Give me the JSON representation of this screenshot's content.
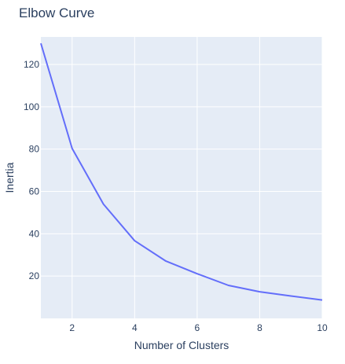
{
  "chart_data": {
    "type": "line",
    "title": "Elbow Curve",
    "xlabel": "Number of Clusters",
    "ylabel": "Inertia",
    "x": [
      1,
      2,
      3,
      4,
      5,
      6,
      7,
      8,
      9,
      10
    ],
    "series": [
      {
        "values": [
          130,
          80.3,
          54,
          36.7,
          27.1,
          21.1,
          15.6,
          12.6,
          10.6,
          8.7
        ]
      }
    ],
    "xlim": [
      1,
      10
    ],
    "ylim": [
      0,
      133
    ],
    "xticks": [
      2,
      4,
      6,
      8,
      10
    ],
    "yticks": [
      20,
      40,
      60,
      80,
      100,
      120
    ],
    "grid": true,
    "colors": {
      "background": "#e5ecf6",
      "line": "#636efa",
      "grid": "#ffffff",
      "text": "#2a3f5f"
    }
  }
}
